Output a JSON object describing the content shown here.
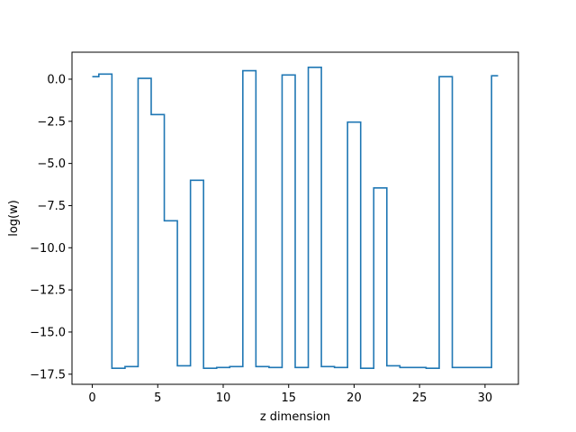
{
  "chart_data": {
    "type": "line",
    "drawstyle": "steps-mid",
    "title": "",
    "xlabel": "z dimension",
    "ylabel": "log(w)",
    "xlim": [
      -1.55,
      32.55
    ],
    "ylim": [
      -18.1,
      1.6
    ],
    "grid": false,
    "legend": "none",
    "x_ticks": [
      0,
      5,
      10,
      15,
      20,
      25,
      30
    ],
    "x_tick_labels": [
      "0",
      "5",
      "10",
      "15",
      "20",
      "25",
      "30"
    ],
    "y_ticks": [
      0,
      -2.5,
      -5,
      -7.5,
      -10,
      -12.5,
      -15,
      -17.5
    ],
    "y_tick_labels": [
      "0.0",
      "−2.5",
      "−5.0",
      "−7.5",
      "−10.0",
      "−12.5",
      "−15.0",
      "−17.5"
    ],
    "series": [
      {
        "color": "#1f77b4",
        "x": [
          0,
          1,
          2,
          3,
          4,
          5,
          6,
          7,
          8,
          9,
          10,
          11,
          12,
          13,
          14,
          15,
          16,
          17,
          18,
          19,
          20,
          21,
          22,
          23,
          24,
          25,
          26,
          27,
          28,
          29,
          30,
          31
        ],
        "values": [
          0.15,
          0.3,
          -17.15,
          -17.05,
          0.05,
          -2.1,
          -8.4,
          -17.0,
          -6.0,
          -17.15,
          -17.1,
          -17.05,
          0.5,
          -17.05,
          -17.1,
          0.25,
          -17.1,
          0.7,
          -17.05,
          -17.1,
          -2.55,
          -17.15,
          -6.45,
          -17.0,
          -17.1,
          -17.1,
          -17.15,
          0.15,
          -17.1,
          -17.1,
          -17.1,
          0.2
        ]
      }
    ]
  }
}
